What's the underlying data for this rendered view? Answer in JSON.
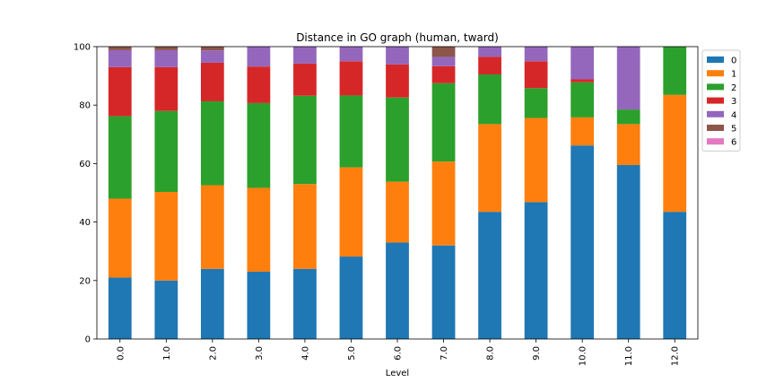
{
  "chart_data": {
    "type": "bar",
    "stacked": true,
    "title": "Distance in GO graph (human, tward)",
    "xlabel": "Level",
    "ylabel": "",
    "ylim": [
      0,
      100
    ],
    "yticks": [
      "0",
      "20",
      "40",
      "60",
      "80",
      "100"
    ],
    "categories": [
      "0.0",
      "1.0",
      "2.0",
      "3.0",
      "4.0",
      "5.0",
      "6.0",
      "7.0",
      "8.0",
      "9.0",
      "10.0",
      "11.0",
      "12.0"
    ],
    "legend_position": "outside-top-right",
    "grid": false,
    "series": [
      {
        "name": "0",
        "color": "#1f77b4",
        "values": [
          21.0,
          20.0,
          24.0,
          23.0,
          24.0,
          28.2,
          33.0,
          32.0,
          43.5,
          46.8,
          66.2,
          59.5,
          43.5
        ]
      },
      {
        "name": "1",
        "color": "#ff7f0e",
        "values": [
          27.0,
          30.3,
          28.6,
          28.7,
          29.0,
          30.5,
          20.8,
          28.7,
          30.0,
          28.8,
          9.6,
          14.0,
          40.0
        ]
      },
      {
        "name": "2",
        "color": "#2ca02c",
        "values": [
          28.2,
          27.7,
          28.7,
          29.0,
          30.2,
          24.6,
          28.8,
          26.8,
          17.0,
          10.2,
          12.0,
          5.0,
          16.5
        ]
      },
      {
        "name": "3",
        "color": "#d62728",
        "values": [
          16.8,
          15.0,
          13.2,
          12.5,
          11.0,
          11.7,
          11.3,
          5.8,
          6.0,
          9.2,
          1.0,
          0.0,
          0.0
        ]
      },
      {
        "name": "4",
        "color": "#9467bd",
        "values": [
          5.8,
          5.8,
          4.2,
          6.8,
          5.8,
          5.0,
          6.1,
          3.2,
          3.5,
          5.0,
          11.2,
          21.5,
          0.0
        ]
      },
      {
        "name": "5",
        "color": "#8c564b",
        "values": [
          1.2,
          1.2,
          1.3,
          0.0,
          0.0,
          0.0,
          0.0,
          3.5,
          0.0,
          0.0,
          0.0,
          0.0,
          0.0
        ]
      },
      {
        "name": "6",
        "color": "#e377c2",
        "values": [
          0.0,
          0.0,
          0.0,
          0.0,
          0.0,
          0.0,
          0.0,
          0.0,
          0.0,
          0.0,
          0.0,
          0.0,
          0.0
        ]
      }
    ]
  }
}
